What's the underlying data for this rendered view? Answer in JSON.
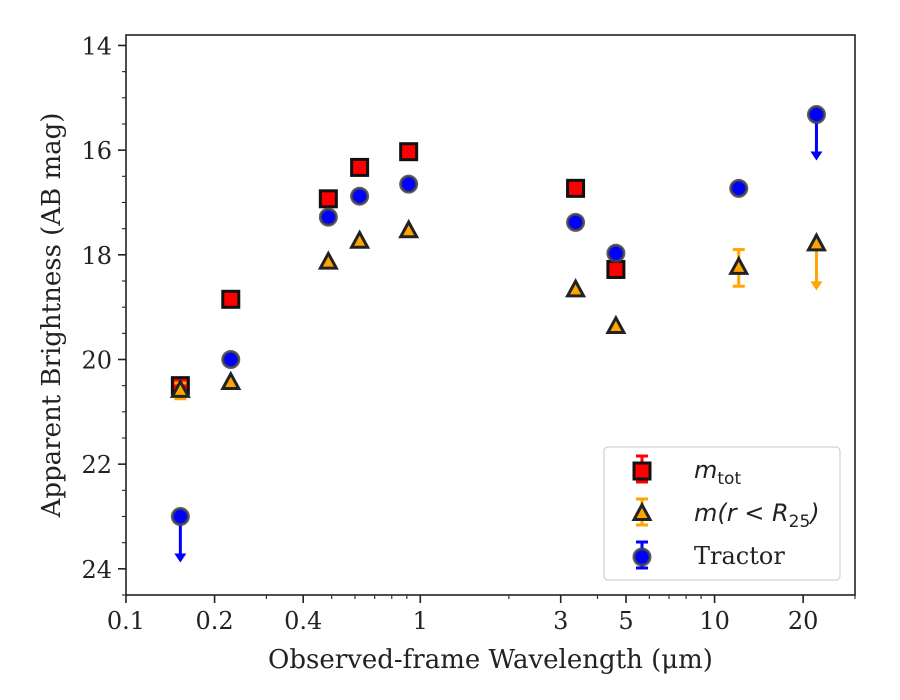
{
  "chart_data": {
    "type": "scatter",
    "xlabel": "Observed-frame Wavelength (μm)",
    "ylabel": "Apparent Brightness (AB mag)",
    "xscale": "log",
    "xlim": [
      0.1,
      30
    ],
    "ylim": [
      24.5,
      13.8
    ],
    "y_inverted": true,
    "x_ticks": [
      0.1,
      0.2,
      0.4,
      1,
      3,
      5,
      10,
      20
    ],
    "x_tick_labels": [
      "0.1",
      "0.2",
      "0.4",
      "1",
      "3",
      "5",
      "10",
      "20"
    ],
    "y_ticks": [
      14,
      16,
      18,
      20,
      22,
      24
    ],
    "y_tick_labels": [
      "14",
      "16",
      "18",
      "20",
      "22",
      "24"
    ],
    "grid": false,
    "legend_position": "lower-right",
    "series": [
      {
        "name": "m_tot",
        "legend_label": {
          "base": "m",
          "sub": "tot",
          "rest": ""
        },
        "marker": "square",
        "color": "#ff0000",
        "edgecolor": "#111111",
        "points": [
          {
            "x": 0.153,
            "y": 20.5,
            "err": 0.12
          },
          {
            "x": 0.227,
            "y": 18.85,
            "err": 0.0
          },
          {
            "x": 0.487,
            "y": 16.93,
            "err": 0.0
          },
          {
            "x": 0.622,
            "y": 16.33,
            "err": 0.0
          },
          {
            "x": 0.913,
            "y": 16.03,
            "err": 0.0
          },
          {
            "x": 3.37,
            "y": 16.73,
            "err": 0.0
          },
          {
            "x": 4.62,
            "y": 18.28,
            "err": 0.0
          }
        ]
      },
      {
        "name": "m(r < R25)",
        "legend_label": {
          "base": "m(r < R",
          "sub": "25",
          "rest": ")"
        },
        "marker": "triangle",
        "color": "#ffa500",
        "edgecolor": "#222222",
        "points": [
          {
            "x": 0.153,
            "y": 20.6,
            "err": 0.15
          },
          {
            "x": 0.227,
            "y": 20.45,
            "err": 0.0
          },
          {
            "x": 0.487,
            "y": 18.15,
            "err": 0.0
          },
          {
            "x": 0.622,
            "y": 17.75,
            "err": 0.0
          },
          {
            "x": 0.913,
            "y": 17.55,
            "err": 0.0
          },
          {
            "x": 3.37,
            "y": 18.68,
            "err": 0.0
          },
          {
            "x": 4.62,
            "y": 19.38,
            "err": 0.0
          },
          {
            "x": 12.08,
            "y": 18.25,
            "err": 0.35
          },
          {
            "x": 22.19,
            "y": 17.8,
            "upper_limit": true
          }
        ]
      },
      {
        "name": "Tractor",
        "legend_label": {
          "base": "Tractor",
          "sub": "",
          "rest": ""
        },
        "marker": "circle",
        "color": "#0000ff",
        "edgecolor": "#444444",
        "points": [
          {
            "x": 0.153,
            "y": 23.0,
            "upper_limit": true
          },
          {
            "x": 0.227,
            "y": 20.0,
            "err": 0.0
          },
          {
            "x": 0.487,
            "y": 17.28,
            "err": 0.0
          },
          {
            "x": 0.622,
            "y": 16.88,
            "err": 0.0
          },
          {
            "x": 0.913,
            "y": 16.65,
            "err": 0.0
          },
          {
            "x": 3.37,
            "y": 17.38,
            "err": 0.0
          },
          {
            "x": 4.62,
            "y": 17.97,
            "err": 0.0
          },
          {
            "x": 12.08,
            "y": 16.73,
            "err": 0.0
          },
          {
            "x": 22.19,
            "y": 15.32,
            "upper_limit": true
          }
        ]
      }
    ]
  }
}
